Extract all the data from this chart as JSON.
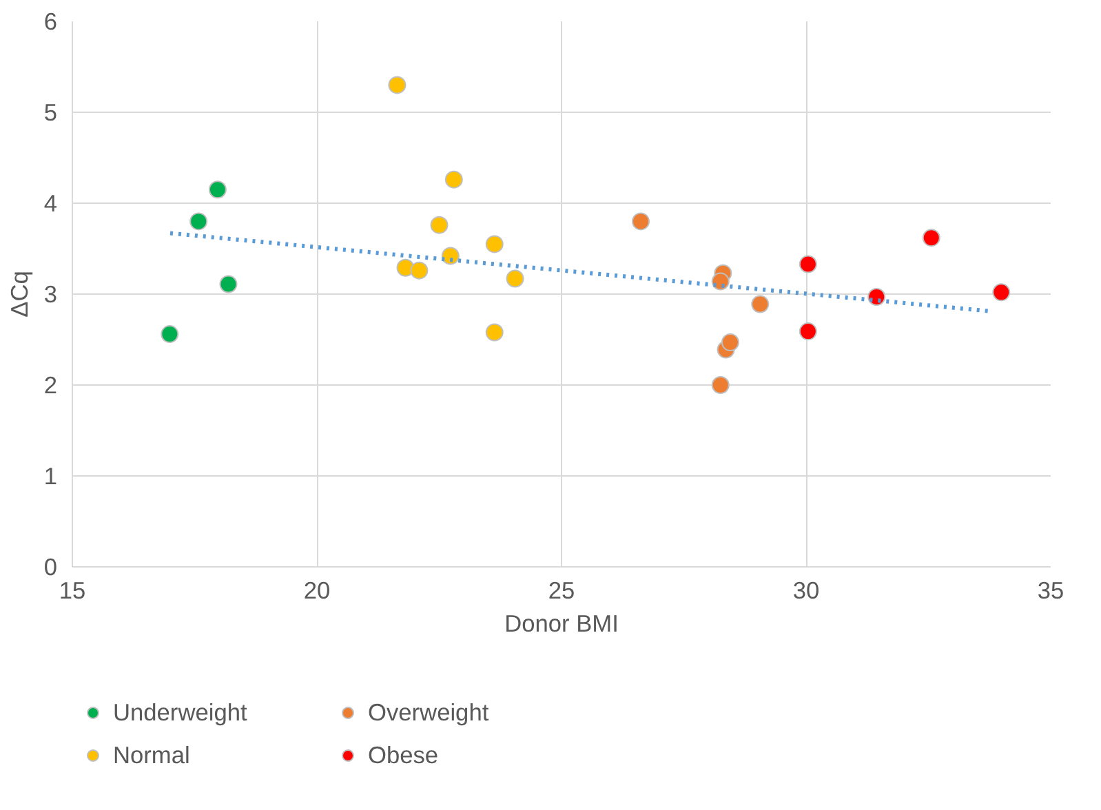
{
  "chart_data": {
    "type": "scatter",
    "xlabel": "Donor BMI",
    "ylabel": "ΔCq",
    "xlim": [
      15,
      35
    ],
    "ylim": [
      0,
      6
    ],
    "xticks": [
      15,
      20,
      25,
      30,
      35
    ],
    "yticks": [
      0,
      1,
      2,
      3,
      4,
      5,
      6
    ],
    "grid": true,
    "legend": "bottom",
    "marker": "circle",
    "series": [
      {
        "name": "Underweight",
        "color": "#00b050",
        "x": [
          16.99,
          17.58,
          17.97,
          18.19
        ],
        "values": [
          2.56,
          3.8,
          4.15,
          3.11
        ]
      },
      {
        "name": "Normal",
        "color": "#ffc000",
        "x": [
          21.64,
          21.81,
          22.09,
          22.5,
          22.73,
          22.8,
          23.63,
          23.63,
          24.05
        ],
        "values": [
          5.3,
          3.29,
          3.26,
          3.76,
          3.42,
          4.26,
          3.55,
          2.58,
          3.17
        ]
      },
      {
        "name": "Overweight",
        "color": "#ed7d31",
        "x": [
          26.62,
          28.3,
          28.25,
          28.36,
          28.45,
          28.25,
          29.06
        ],
        "values": [
          3.8,
          3.23,
          3.14,
          2.39,
          2.47,
          2.0,
          2.89
        ]
      },
      {
        "name": "Obese",
        "color": "#ff0000",
        "x": [
          30.04,
          30.04,
          31.44,
          32.56,
          33.99
        ],
        "values": [
          3.33,
          2.59,
          2.97,
          3.62,
          3.02
        ]
      },
      {
        "type": "line",
        "marker": "none",
        "color": "#5b9bd5",
        "line_style": "dotted",
        "x": [
          17.0,
          33.8
        ],
        "values": [
          3.67,
          2.81
        ]
      }
    ]
  }
}
